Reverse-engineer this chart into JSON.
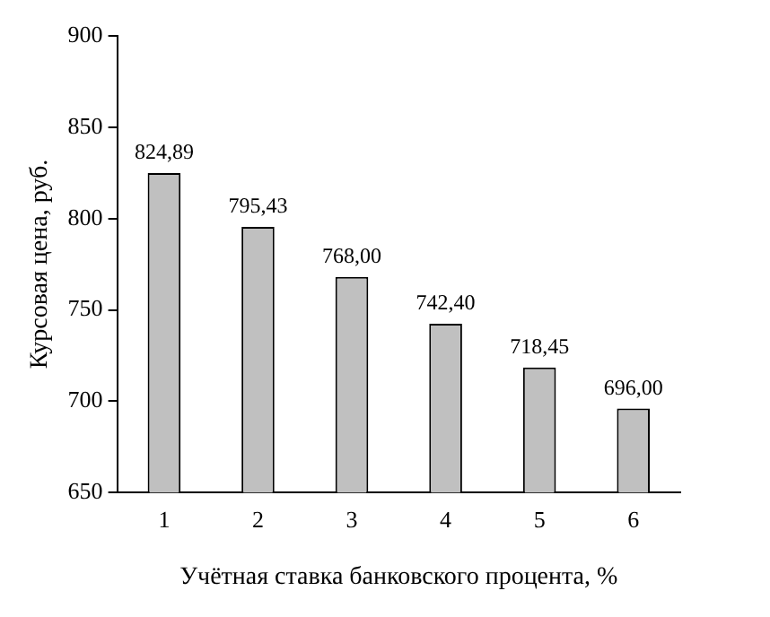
{
  "chart_data": {
    "type": "bar",
    "xlabel": "Учётная ставка банковского процента, %",
    "ylabel": "Курсовая цена, руб.",
    "categories": [
      "1",
      "2",
      "3",
      "4",
      "5",
      "6"
    ],
    "values": [
      824.89,
      795.43,
      768.0,
      742.4,
      718.45,
      696.0
    ],
    "value_labels": [
      "824,89",
      "795,43",
      "768,00",
      "742,40",
      "718,45",
      "696,00"
    ],
    "color": "#c0c0c0",
    "ylim": [
      650,
      900
    ],
    "yticks": [
      650,
      700,
      750,
      800,
      850,
      900
    ],
    "grid": false,
    "legend": false
  }
}
